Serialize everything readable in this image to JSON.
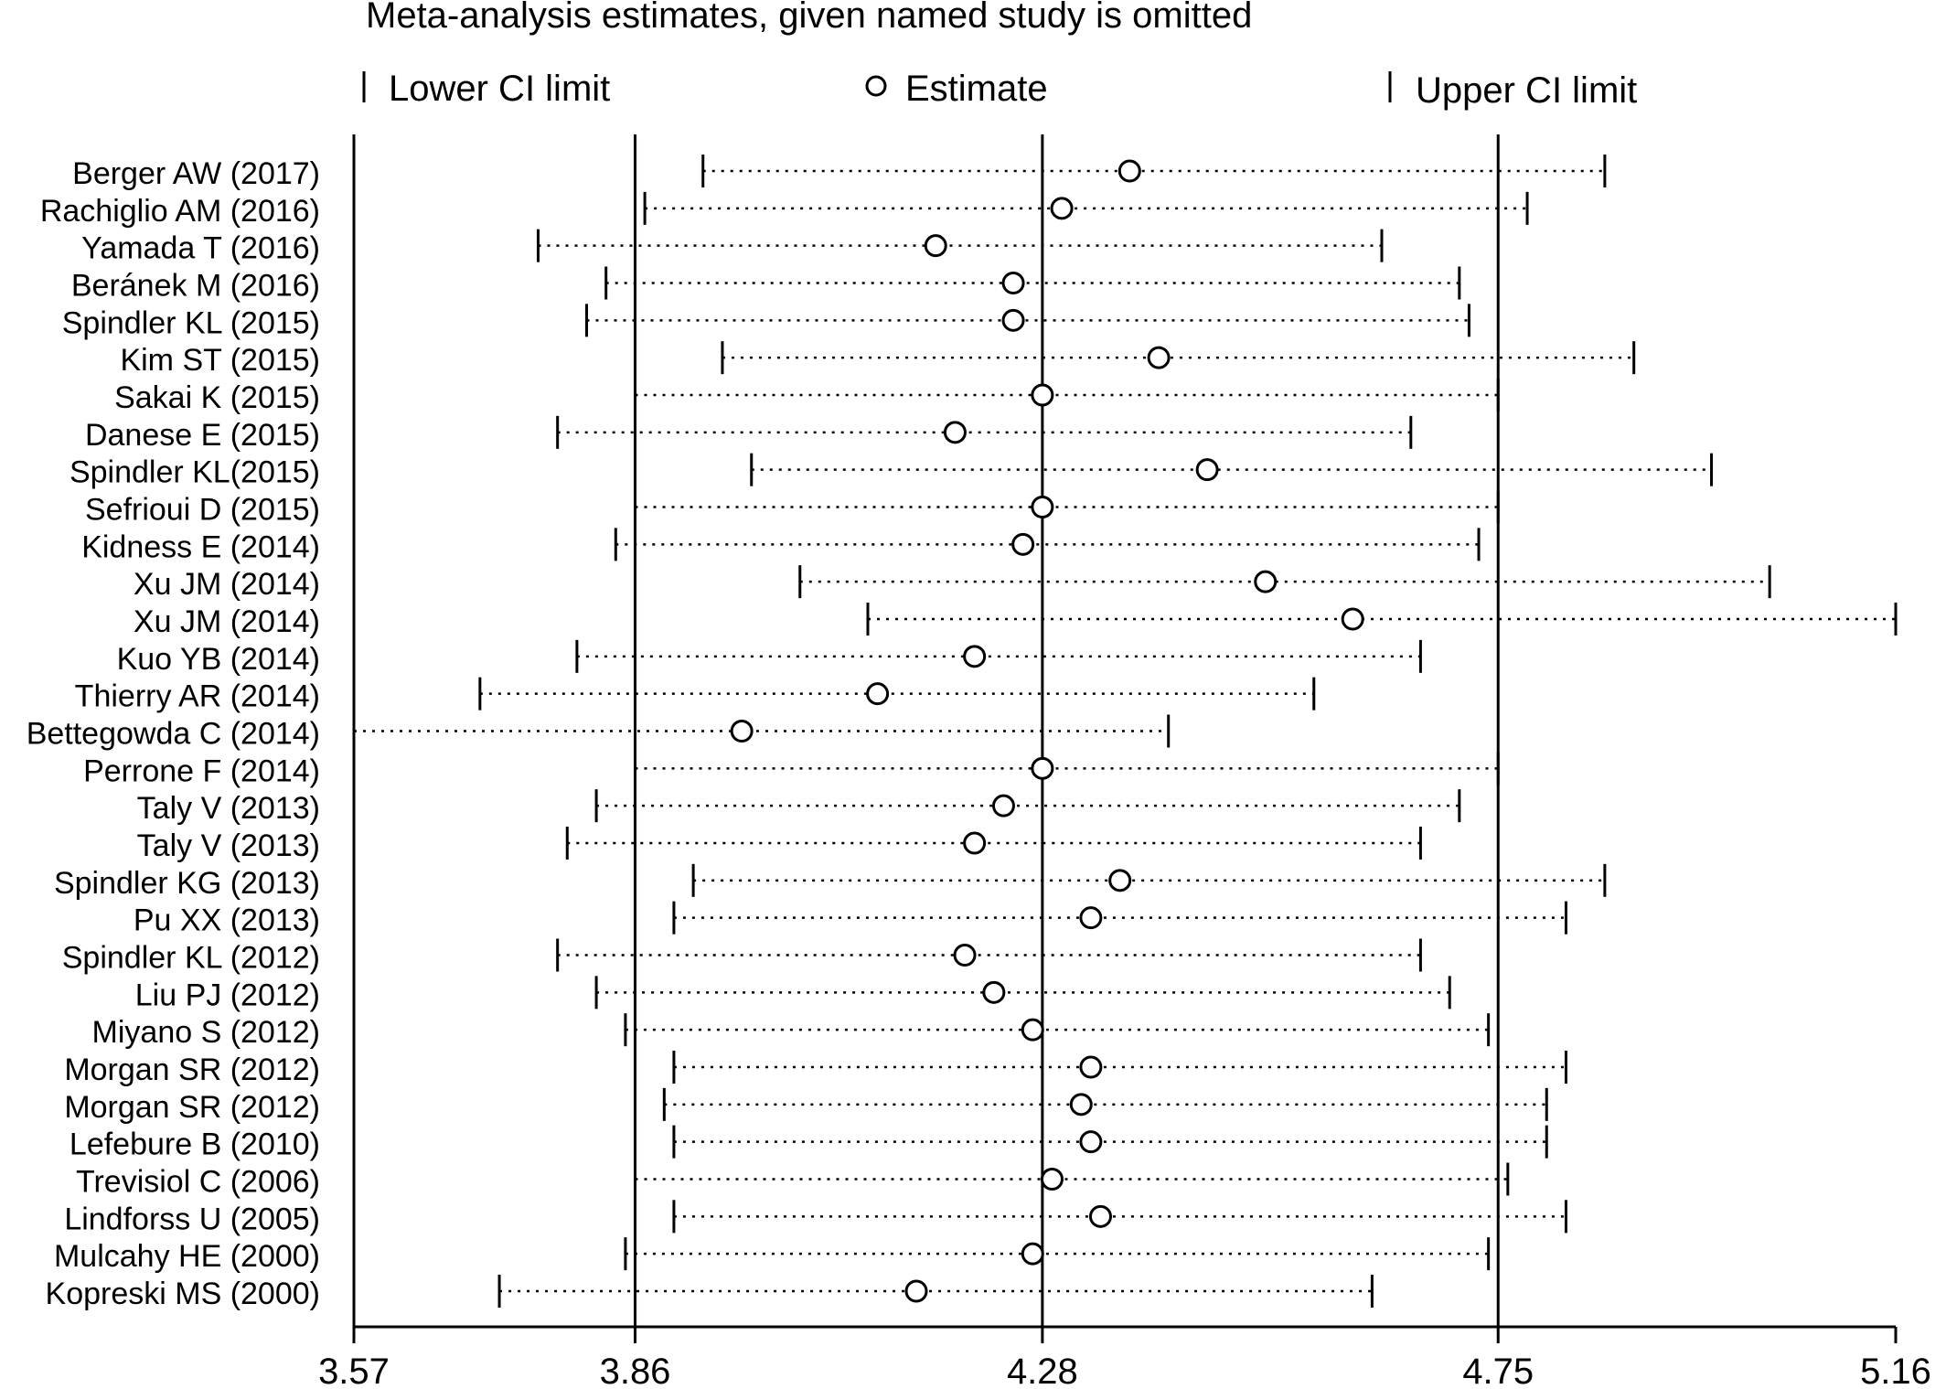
{
  "chart_data": {
    "type": "scatter",
    "title": "Meta-analysis estimates, given named study is omitted",
    "legend": {
      "placement": "top",
      "entries": [
        "Lower CI limit",
        "Estimate",
        "Upper CI limit"
      ]
    },
    "xlim": [
      3.57,
      5.16
    ],
    "x_ticks": [
      "3.57",
      "3.86",
      "4.28",
      "4.75",
      "5.16"
    ],
    "reference_lines": {
      "lower": 3.86,
      "estimate": 4.28,
      "upper": 4.75
    },
    "studies": [
      {
        "label": "Berger AW (2017)",
        "lower": 3.93,
        "estimate": 4.37,
        "upper": 4.86
      },
      {
        "label": "Rachiglio AM (2016)",
        "lower": 3.87,
        "estimate": 4.3,
        "upper": 4.78
      },
      {
        "label": "Yamada T (2016)",
        "lower": 3.76,
        "estimate": 4.17,
        "upper": 4.63
      },
      {
        "label": "Beránek M (2016)",
        "lower": 3.83,
        "estimate": 4.25,
        "upper": 4.71
      },
      {
        "label": "Spindler KL (2015)",
        "lower": 3.81,
        "estimate": 4.25,
        "upper": 4.72
      },
      {
        "label": "Kim ST (2015)",
        "lower": 3.95,
        "estimate": 4.4,
        "upper": 4.89
      },
      {
        "label": "Sakai K (2015)",
        "lower": 3.86,
        "estimate": 4.28,
        "upper": 4.75
      },
      {
        "label": "Danese E (2015)",
        "lower": 3.78,
        "estimate": 4.19,
        "upper": 4.66
      },
      {
        "label": "Spindler KL(2015)",
        "lower": 3.98,
        "estimate": 4.45,
        "upper": 4.97
      },
      {
        "label": "Sefrioui D (2015)",
        "lower": 3.86,
        "estimate": 4.28,
        "upper": 4.75
      },
      {
        "label": "Kidness E (2014)",
        "lower": 3.84,
        "estimate": 4.26,
        "upper": 4.73
      },
      {
        "label": "Xu JM (2014)",
        "lower": 4.03,
        "estimate": 4.51,
        "upper": 5.03
      },
      {
        "label": "Xu JM (2014)",
        "lower": 4.1,
        "estimate": 4.6,
        "upper": 5.16
      },
      {
        "label": "Kuo YB (2014)",
        "lower": 3.8,
        "estimate": 4.21,
        "upper": 4.67
      },
      {
        "label": "Thierry AR (2014)",
        "lower": 3.7,
        "estimate": 4.11,
        "upper": 4.56
      },
      {
        "label": "Bettegowda C (2014)",
        "lower": 3.57,
        "estimate": 3.97,
        "upper": 4.41
      },
      {
        "label": "Perrone F (2014)",
        "lower": 3.86,
        "estimate": 4.28,
        "upper": 4.75
      },
      {
        "label": "Taly V (2013)",
        "lower": 3.82,
        "estimate": 4.24,
        "upper": 4.71
      },
      {
        "label": "Taly V (2013)",
        "lower": 3.79,
        "estimate": 4.21,
        "upper": 4.67
      },
      {
        "label": "Spindler KG (2013)",
        "lower": 3.92,
        "estimate": 4.36,
        "upper": 4.86
      },
      {
        "label": "Pu XX (2013)",
        "lower": 3.9,
        "estimate": 4.33,
        "upper": 4.82
      },
      {
        "label": "Spindler KL (2012)",
        "lower": 3.78,
        "estimate": 4.2,
        "upper": 4.67
      },
      {
        "label": "Liu PJ (2012)",
        "lower": 3.82,
        "estimate": 4.23,
        "upper": 4.7
      },
      {
        "label": "Miyano S (2012)",
        "lower": 3.85,
        "estimate": 4.27,
        "upper": 4.74
      },
      {
        "label": "Morgan SR (2012)",
        "lower": 3.9,
        "estimate": 4.33,
        "upper": 4.82
      },
      {
        "label": "Morgan SR (2012)",
        "lower": 3.89,
        "estimate": 4.32,
        "upper": 4.8
      },
      {
        "label": "Lefebure B (2010)",
        "lower": 3.9,
        "estimate": 4.33,
        "upper": 4.8
      },
      {
        "label": "Trevisiol C (2006)",
        "lower": 3.86,
        "estimate": 4.29,
        "upper": 4.76
      },
      {
        "label": "Lindforss U (2005)",
        "lower": 3.9,
        "estimate": 4.34,
        "upper": 4.82
      },
      {
        "label": "Mulcahy HE (2000)",
        "lower": 3.85,
        "estimate": 4.27,
        "upper": 4.74
      },
      {
        "label": "Kopreski MS (2000)",
        "lower": 3.72,
        "estimate": 4.15,
        "upper": 4.62
      }
    ]
  }
}
